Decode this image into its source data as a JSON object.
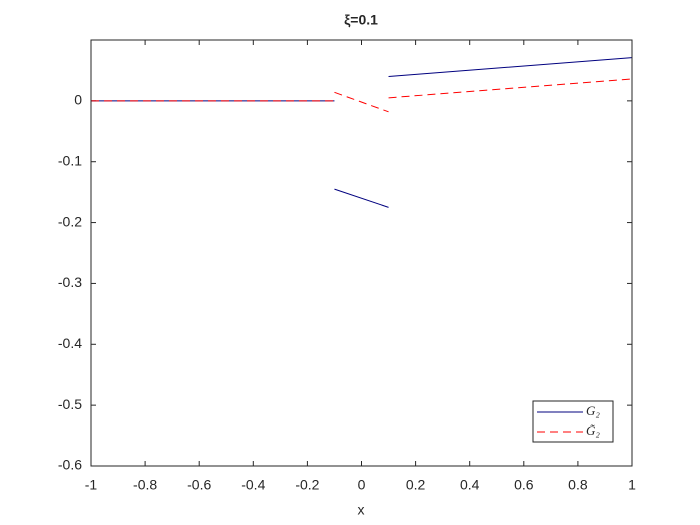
{
  "chart_data": {
    "type": "line",
    "title": "ξ=0.1",
    "xlabel": "x",
    "x": [
      -1,
      -0.1,
      -0.1,
      -0.1,
      0.1,
      0.1,
      0.1,
      1
    ],
    "series": [
      {
        "name": "G₂",
        "color": "#00007f",
        "dash": "solid",
        "values": [
          0,
          0,
          null,
          -0.145,
          -0.175,
          null,
          0.04,
          0.071
        ]
      },
      {
        "name": "G̃₂",
        "color": "#ff0000",
        "dash": "dashed",
        "values": [
          0,
          0,
          null,
          0.014,
          -0.018,
          null,
          0.005,
          0.036
        ]
      }
    ],
    "xlim": [
      -1,
      1
    ],
    "xticks": [
      -1,
      -0.8,
      -0.6,
      -0.4,
      -0.2,
      0,
      0.2,
      0.4,
      0.6,
      0.8,
      1
    ],
    "ylim": [
      -0.6,
      0.1
    ],
    "yticks": [
      -0.6,
      -0.5,
      -0.4,
      -0.3,
      -0.2,
      -0.1,
      0
    ],
    "legend": "bottom-right",
    "grid": false
  }
}
